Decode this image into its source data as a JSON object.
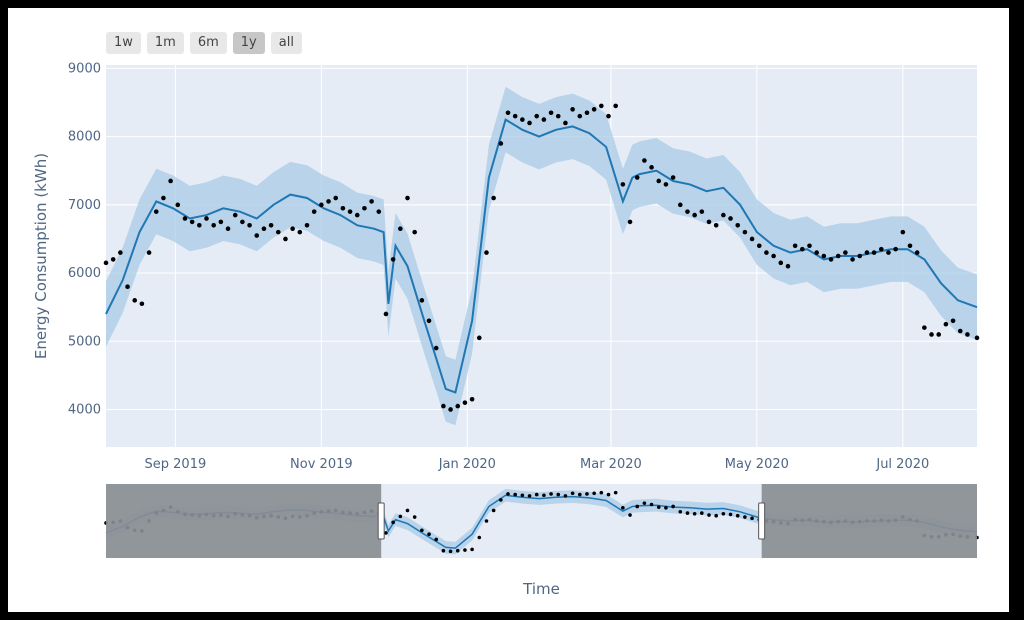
{
  "range_selector": {
    "buttons": [
      "1w",
      "1m",
      "6m",
      "1y",
      "all"
    ],
    "active": "1y"
  },
  "colors": {
    "plot_bg": "#e5ecf6",
    "line": "#1f77b4",
    "band": "#a9cbe6",
    "dots": "#000000",
    "slider_mask": "#8a8e93"
  },
  "chart_data": {
    "type": "line",
    "title": "",
    "xlabel": "Time",
    "ylabel": "Energy Consumption (kWh)",
    "x_ticks": [
      "Sep 2019",
      "Nov 2019",
      "Jan 2020",
      "Mar 2020",
      "May 2020",
      "Jul 2020"
    ],
    "x_tick_dates": [
      "2019-09-01",
      "2019-11-01",
      "2020-01-01",
      "2020-03-01",
      "2020-05-01",
      "2020-07-01"
    ],
    "xlim": [
      "2019-08-03",
      "2020-08-01"
    ],
    "y_ticks": [
      4000,
      5000,
      6000,
      7000,
      8000,
      9000
    ],
    "ylim": [
      3450,
      9050
    ],
    "grid": true,
    "legend": "none",
    "series": [
      {
        "kind": "forecast-line",
        "x": [
          "2019-08-03",
          "2019-08-10",
          "2019-08-17",
          "2019-08-24",
          "2019-08-31",
          "2019-09-07",
          "2019-09-14",
          "2019-09-21",
          "2019-09-28",
          "2019-10-05",
          "2019-10-12",
          "2019-10-19",
          "2019-10-26",
          "2019-11-02",
          "2019-11-09",
          "2019-11-16",
          "2019-11-23",
          "2019-11-27",
          "2019-11-29",
          "2019-12-02",
          "2019-12-07",
          "2019-12-14",
          "2019-12-19",
          "2019-12-23",
          "2019-12-27",
          "2020-01-03",
          "2020-01-10",
          "2020-01-17",
          "2020-01-24",
          "2020-01-31",
          "2020-02-07",
          "2020-02-14",
          "2020-02-21",
          "2020-02-28",
          "2020-03-06",
          "2020-03-10",
          "2020-03-13",
          "2020-03-20",
          "2020-03-27",
          "2020-04-03",
          "2020-04-10",
          "2020-04-17",
          "2020-04-24",
          "2020-05-01",
          "2020-05-08",
          "2020-05-15",
          "2020-05-22",
          "2020-05-29",
          "2020-06-05",
          "2020-06-12",
          "2020-06-19",
          "2020-06-26",
          "2020-07-03",
          "2020-07-10",
          "2020-07-17",
          "2020-07-24",
          "2020-08-01"
        ],
        "y": [
          5400,
          5900,
          6600,
          7050,
          6950,
          6800,
          6850,
          6950,
          6900,
          6800,
          7000,
          7150,
          7100,
          6950,
          6850,
          6700,
          6650,
          6600,
          5550,
          6400,
          6100,
          5300,
          4750,
          4300,
          4250,
          5300,
          7400,
          8250,
          8100,
          8000,
          8100,
          8150,
          8050,
          7850,
          7050,
          7400,
          7450,
          7500,
          7350,
          7300,
          7200,
          7250,
          7000,
          6600,
          6400,
          6300,
          6350,
          6200,
          6250,
          6250,
          6300,
          6350,
          6350,
          6200,
          5850,
          5600,
          5500
        ]
      },
      {
        "kind": "uncertainty-band",
        "x_ref": "forecast-line",
        "half_width": 480
      },
      {
        "kind": "actual-points",
        "x": [
          "2019-08-03",
          "2019-08-06",
          "2019-08-09",
          "2019-08-12",
          "2019-08-15",
          "2019-08-18",
          "2019-08-21",
          "2019-08-24",
          "2019-08-27",
          "2019-08-30",
          "2019-09-02",
          "2019-09-05",
          "2019-09-08",
          "2019-09-11",
          "2019-09-14",
          "2019-09-17",
          "2019-09-20",
          "2019-09-23",
          "2019-09-26",
          "2019-09-29",
          "2019-10-02",
          "2019-10-05",
          "2019-10-08",
          "2019-10-11",
          "2019-10-14",
          "2019-10-17",
          "2019-10-20",
          "2019-10-23",
          "2019-10-26",
          "2019-10-29",
          "2019-11-01",
          "2019-11-04",
          "2019-11-07",
          "2019-11-10",
          "2019-11-13",
          "2019-11-16",
          "2019-11-19",
          "2019-11-22",
          "2019-11-25",
          "2019-11-28",
          "2019-12-01",
          "2019-12-04",
          "2019-12-07",
          "2019-12-10",
          "2019-12-13",
          "2019-12-16",
          "2019-12-19",
          "2019-12-22",
          "2019-12-25",
          "2019-12-28",
          "2019-12-31",
          "2020-01-03",
          "2020-01-06",
          "2020-01-09",
          "2020-01-12",
          "2020-01-15",
          "2020-01-18",
          "2020-01-21",
          "2020-01-24",
          "2020-01-27",
          "2020-01-30",
          "2020-02-02",
          "2020-02-05",
          "2020-02-08",
          "2020-02-11",
          "2020-02-14",
          "2020-02-17",
          "2020-02-20",
          "2020-02-23",
          "2020-02-26",
          "2020-02-29",
          "2020-03-03",
          "2020-03-06",
          "2020-03-09",
          "2020-03-12",
          "2020-03-15",
          "2020-03-18",
          "2020-03-21",
          "2020-03-24",
          "2020-03-27",
          "2020-03-30",
          "2020-04-02",
          "2020-04-05",
          "2020-04-08",
          "2020-04-11",
          "2020-04-14",
          "2020-04-17",
          "2020-04-20",
          "2020-04-23",
          "2020-04-26",
          "2020-04-29",
          "2020-05-02",
          "2020-05-05",
          "2020-05-08",
          "2020-05-11",
          "2020-05-14",
          "2020-05-17",
          "2020-05-20",
          "2020-05-23",
          "2020-05-26",
          "2020-05-29",
          "2020-06-01",
          "2020-06-04",
          "2020-06-07",
          "2020-06-10",
          "2020-06-13",
          "2020-06-16",
          "2020-06-19",
          "2020-06-22",
          "2020-06-25",
          "2020-06-28",
          "2020-07-01",
          "2020-07-04",
          "2020-07-07",
          "2020-07-10",
          "2020-07-13",
          "2020-07-16",
          "2020-07-19",
          "2020-07-22",
          "2020-07-25",
          "2020-07-28",
          "2020-08-01"
        ],
        "y": [
          6150,
          6200,
          6300,
          5800,
          5600,
          5550,
          6300,
          6900,
          7100,
          7350,
          7000,
          6800,
          6750,
          6700,
          6800,
          6700,
          6750,
          6650,
          6850,
          6750,
          6700,
          6550,
          6650,
          6700,
          6600,
          6500,
          6650,
          6600,
          6700,
          6900,
          7000,
          7050,
          7100,
          6950,
          6900,
          6850,
          6950,
          7050,
          6900,
          5400,
          6200,
          6650,
          7100,
          6600,
          5600,
          5300,
          4900,
          4050,
          4000,
          4050,
          4100,
          4150,
          5050,
          6300,
          7100,
          7900,
          8350,
          8300,
          8250,
          8200,
          8300,
          8250,
          8350,
          8300,
          8200,
          8400,
          8300,
          8350,
          8400,
          8450,
          8300,
          8450,
          7300,
          6750,
          7400,
          7650,
          7550,
          7350,
          7300,
          7400,
          7000,
          6900,
          6850,
          6900,
          6750,
          6700,
          6850,
          6800,
          6700,
          6600,
          6500,
          6400,
          6300,
          6250,
          6150,
          6100,
          6400,
          6350,
          6400,
          6300,
          6250,
          6200,
          6250,
          6300,
          6200,
          6250,
          6300,
          6300,
          6350,
          6300,
          6350,
          6600,
          6400,
          6300,
          5200,
          5100,
          5100,
          5250,
          5300,
          5150,
          5100,
          5050
        ]
      }
    ]
  },
  "slider": {
    "window_start": "2019-11-26",
    "window_end": "2020-05-03"
  }
}
